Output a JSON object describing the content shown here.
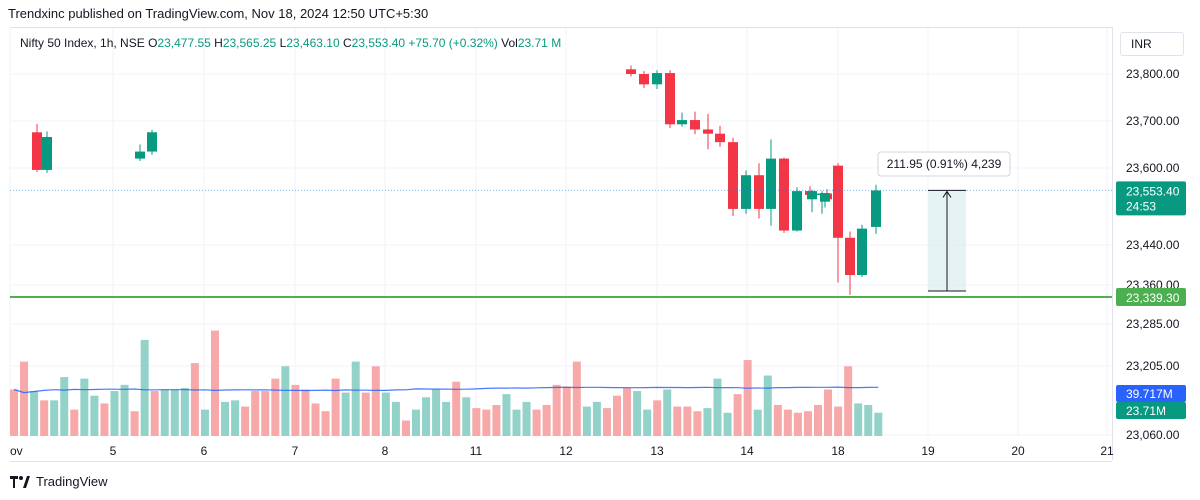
{
  "header": {
    "published": "Trendxinc published on TradingView.com, Nov 18, 2024 12:50 UTC+5:30"
  },
  "legend": {
    "symbol": "Nifty 50 Index, 1h, NSE",
    "o_key": "O",
    "o": "23,477.55",
    "h_key": "H",
    "h": "23,565.25",
    "l_key": "L",
    "l": "23,463.10",
    "c_key": "C",
    "c": "23,553.40",
    "change": "+75.70 (+0.32%)",
    "vol_key": "Vol",
    "vol": "23.71 M"
  },
  "currency": "INR",
  "footer": {
    "brand": "TradingView"
  },
  "colors": {
    "up": "#089981",
    "down": "#f23645",
    "vol_up": "#92d2c9",
    "vol_down": "#f7a8a8",
    "support": "#4caf50",
    "vol_ma": "#2962ff",
    "grid": "#f0f3fa"
  },
  "chart_data": {
    "type": "candlestick",
    "price_axis": {
      "ticks": [
        "23,800.00",
        "23,700.00",
        "23,600.00",
        "23,440.00",
        "23,360.00",
        "23,285.00",
        "23,205.00",
        "23,060.00"
      ],
      "scale": "log"
    },
    "time_axis": {
      "ticks": [
        "ov",
        "5",
        "6",
        "7",
        "8",
        "11",
        "12",
        "13",
        "14",
        "18",
        "19",
        "20",
        "21"
      ]
    },
    "last_price": {
      "label": "23,553.40",
      "countdown": "24:53"
    },
    "support_line": {
      "value": 23339.3,
      "label": "23,339.30"
    },
    "measure": {
      "label": "211.95 (0.91%) 4,239",
      "from": 23341.45,
      "to": 23553.4
    },
    "volume": {
      "ma_label": "39.717M",
      "last_label": "23.71M"
    },
    "candles": [
      {
        "o": 23676,
        "h": 23694,
        "l": 23592,
        "c": 23596
      },
      {
        "o": 23596,
        "h": 23678,
        "l": 23590,
        "c": 23666
      },
      {
        "o": 23620,
        "h": 23650,
        "l": 23615,
        "c": 23635
      },
      {
        "o": 23635,
        "h": 23681,
        "l": 23628,
        "c": 23676
      },
      {
        "o": 23810,
        "h": 23818,
        "l": 23795,
        "c": 23800
      },
      {
        "o": 23800,
        "h": 23806,
        "l": 23770,
        "c": 23778
      },
      {
        "o": 23778,
        "h": 23808,
        "l": 23768,
        "c": 23802
      },
      {
        "o": 23802,
        "h": 23808,
        "l": 23685,
        "c": 23693
      },
      {
        "o": 23693,
        "h": 23718,
        "l": 23688,
        "c": 23702
      },
      {
        "o": 23702,
        "h": 23720,
        "l": 23672,
        "c": 23682
      },
      {
        "o": 23682,
        "h": 23715,
        "l": 23640,
        "c": 23673
      },
      {
        "o": 23673,
        "h": 23690,
        "l": 23645,
        "c": 23655
      },
      {
        "o": 23655,
        "h": 23664,
        "l": 23500,
        "c": 23515
      },
      {
        "o": 23515,
        "h": 23595,
        "l": 23505,
        "c": 23585
      },
      {
        "o": 23585,
        "h": 23610,
        "l": 23495,
        "c": 23515
      },
      {
        "o": 23515,
        "h": 23661,
        "l": 23480,
        "c": 23620
      },
      {
        "o": 23620,
        "h": 23622,
        "l": 23465,
        "c": 23470
      },
      {
        "o": 23470,
        "h": 23560,
        "l": 23468,
        "c": 23552
      },
      {
        "o": 23552,
        "h": 23562,
        "l": 23538,
        "c": 23544
      },
      {
        "o": 23544,
        "h": 23552,
        "l": 23505,
        "c": 23547
      },
      {
        "o": 23547,
        "h": 23556,
        "l": 23532,
        "c": 23535
      },
      {
        "o": 23535,
        "h": 23555,
        "l": 23508,
        "c": 23552
      },
      {
        "o": 23530,
        "h": 23545,
        "l": 23518,
        "c": 23548
      },
      {
        "o": 23605,
        "h": 23610,
        "l": 23365,
        "c": 23455
      },
      {
        "o": 23455,
        "h": 23468,
        "l": 23341,
        "c": 23380
      },
      {
        "o": 23380,
        "h": 23482,
        "l": 23376,
        "c": 23474
      },
      {
        "o": 23477.55,
        "h": 23565.25,
        "l": 23463.1,
        "c": 23553.4
      }
    ],
    "volumes": [
      {
        "v": 30,
        "d": 1
      },
      {
        "v": 48,
        "d": 1
      },
      {
        "v": 29,
        "d": 0
      },
      {
        "v": 23,
        "d": 1
      },
      {
        "v": 23,
        "d": 0
      },
      {
        "v": 38,
        "d": 0
      },
      {
        "v": 17,
        "d": 1
      },
      {
        "v": 37,
        "d": 0
      },
      {
        "v": 26,
        "d": 0
      },
      {
        "v": 21,
        "d": 1
      },
      {
        "v": 29,
        "d": 0
      },
      {
        "v": 33,
        "d": 0
      },
      {
        "v": 16,
        "d": 1
      },
      {
        "v": 62,
        "d": 0
      },
      {
        "v": 29,
        "d": 1
      },
      {
        "v": 30,
        "d": 0
      },
      {
        "v": 30,
        "d": 0
      },
      {
        "v": 31,
        "d": 0
      },
      {
        "v": 47,
        "d": 1
      },
      {
        "v": 17,
        "d": 0
      },
      {
        "v": 68,
        "d": 1
      },
      {
        "v": 22,
        "d": 0
      },
      {
        "v": 23,
        "d": 0
      },
      {
        "v": 19,
        "d": 1
      },
      {
        "v": 29,
        "d": 1
      },
      {
        "v": 29,
        "d": 1
      },
      {
        "v": 37,
        "d": 1
      },
      {
        "v": 45,
        "d": 0
      },
      {
        "v": 33,
        "d": 1
      },
      {
        "v": 30,
        "d": 1
      },
      {
        "v": 21,
        "d": 1
      },
      {
        "v": 16,
        "d": 1
      },
      {
        "v": 37,
        "d": 1
      },
      {
        "v": 28,
        "d": 0
      },
      {
        "v": 48,
        "d": 0
      },
      {
        "v": 28,
        "d": 1
      },
      {
        "v": 45,
        "d": 1
      },
      {
        "v": 28,
        "d": 0
      },
      {
        "v": 22,
        "d": 0
      },
      {
        "v": 10,
        "d": 1
      },
      {
        "v": 17,
        "d": 0
      },
      {
        "v": 25,
        "d": 0
      },
      {
        "v": 30,
        "d": 0
      },
      {
        "v": 22,
        "d": 0
      },
      {
        "v": 35,
        "d": 1
      },
      {
        "v": 25,
        "d": 0
      },
      {
        "v": 18,
        "d": 1
      },
      {
        "v": 17,
        "d": 1
      },
      {
        "v": 20,
        "d": 1
      },
      {
        "v": 27,
        "d": 0
      },
      {
        "v": 17,
        "d": 0
      },
      {
        "v": 22,
        "d": 0
      },
      {
        "v": 17,
        "d": 1
      },
      {
        "v": 20,
        "d": 1
      },
      {
        "v": 33,
        "d": 1
      },
      {
        "v": 32,
        "d": 1
      },
      {
        "v": 48,
        "d": 1
      },
      {
        "v": 19,
        "d": 0
      },
      {
        "v": 22,
        "d": 0
      },
      {
        "v": 18,
        "d": 1
      },
      {
        "v": 26,
        "d": 1
      },
      {
        "v": 31,
        "d": 1
      },
      {
        "v": 29,
        "d": 0
      },
      {
        "v": 17,
        "d": 0
      },
      {
        "v": 23,
        "d": 1
      },
      {
        "v": 30,
        "d": 0
      },
      {
        "v": 19,
        "d": 1
      },
      {
        "v": 19,
        "d": 1
      },
      {
        "v": 16,
        "d": 1
      },
      {
        "v": 18,
        "d": 0
      },
      {
        "v": 37,
        "d": 0
      },
      {
        "v": 15,
        "d": 0
      },
      {
        "v": 27,
        "d": 1
      },
      {
        "v": 49,
        "d": 1
      },
      {
        "v": 17,
        "d": 0
      },
      {
        "v": 39,
        "d": 0
      },
      {
        "v": 20,
        "d": 1
      },
      {
        "v": 17,
        "d": 1
      },
      {
        "v": 15,
        "d": 1
      },
      {
        "v": 16,
        "d": 1
      },
      {
        "v": 20,
        "d": 1
      },
      {
        "v": 30,
        "d": 1
      },
      {
        "v": 19,
        "d": 1
      },
      {
        "v": 45,
        "d": 1
      },
      {
        "v": 21,
        "d": 0
      },
      {
        "v": 20,
        "d": 0
      },
      {
        "v": 15,
        "d": 0
      }
    ]
  }
}
